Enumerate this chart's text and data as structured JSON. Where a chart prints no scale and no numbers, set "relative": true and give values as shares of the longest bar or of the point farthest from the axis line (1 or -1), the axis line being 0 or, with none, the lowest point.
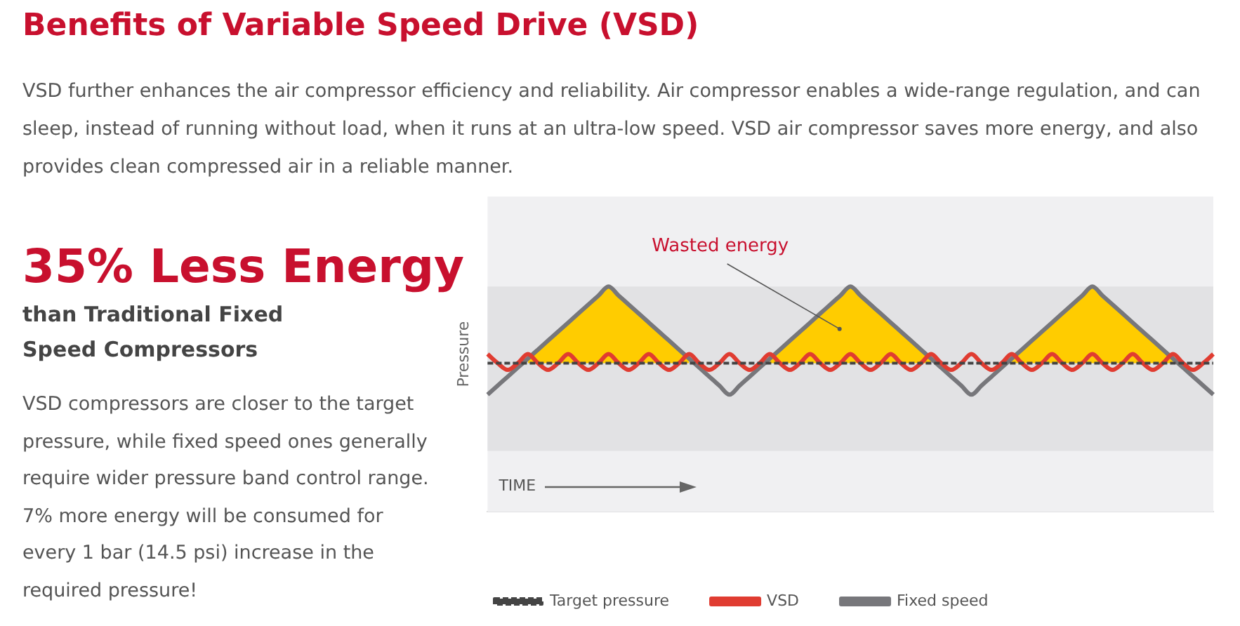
{
  "chart_data": [
    {
      "type": "other",
      "title": "Benefits of Variable Speed Drive (VSD)",
      "subtitle": "VSD further enhances the air compressor efficiency and reliability. Air compressor enables a wide-range regulation, and can sleep, instead of running without load, when it runs at an ultra-low speed. VSD air compressor saves more energy, and also provides clean compressed air in a reliable manner.",
      "annotations": [
        "35% Less Energy",
        "than Traditional Fixed Speed Compressors",
        "VSD compressors are closer to the target pressure, while fixed speed ones generally require wider pressure band control range. 7% more energy will be consumed for every 1 bar (14.5 psi) increase in the required pressure!"
      ]
    },
    {
      "type": "line",
      "relative": true,
      "xlabel": "TIME",
      "ylabel": "Pressure",
      "legend": "bottom",
      "categories": [
        null,
        null,
        null,
        null,
        null,
        null,
        null,
        null,
        null,
        null,
        null,
        null,
        null,
        null,
        null,
        null,
        null,
        null,
        null,
        null,
        null,
        null,
        null,
        null,
        null,
        null,
        null,
        null,
        null,
        null,
        null,
        null,
        null,
        null,
        null,
        null,
        null,
        null,
        null,
        null,
        null,
        null,
        null,
        null,
        null,
        null,
        null,
        null,
        null,
        null,
        null,
        null,
        null,
        null,
        null,
        null,
        null,
        null,
        null,
        null,
        null,
        null,
        null,
        null,
        null,
        null,
        null,
        null,
        null,
        null,
        null,
        null,
        null
      ],
      "bands": [
        {
          "axis": "y",
          "from": 0.27,
          "to": 1.0,
          "color": "#e2e2e4"
        }
      ],
      "annotations": [
        "Wasted energy"
      ],
      "series": [
        {
          "name": "Target pressure",
          "color": "#444444",
          "line_style": "dashed",
          "values": [
            0.66,
            0.66,
            0.66,
            0.66,
            0.66,
            0.66,
            0.66,
            0.66,
            0.66,
            0.66,
            0.66,
            0.66,
            0.66,
            0.66,
            0.66,
            0.66,
            0.66,
            0.66,
            0.66,
            0.66,
            0.66,
            0.66,
            0.66,
            0.66,
            0.66,
            0.66,
            0.66,
            0.66,
            0.66,
            0.66,
            0.66,
            0.66,
            0.66,
            0.66,
            0.66,
            0.66,
            0.66,
            0.66,
            0.66,
            0.66,
            0.66,
            0.66,
            0.66,
            0.66,
            0.66,
            0.66,
            0.66,
            0.66,
            0.66,
            0.66,
            0.66,
            0.66,
            0.66,
            0.66,
            0.66,
            0.66,
            0.66,
            0.66,
            0.66,
            0.66,
            0.66,
            0.66,
            0.66,
            0.66,
            0.66,
            0.66,
            0.66,
            0.66,
            0.66,
            0.66,
            0.66,
            0.66,
            0.66
          ]
        },
        {
          "type": "area",
          "color": "#ffcc00",
          "values": [
            null,
            null,
            null,
            null,
            0.68,
            0.72,
            0.76,
            0.8,
            0.84,
            0.88,
            0.92,
            0.96,
            1.0,
            0.96,
            0.92,
            0.88,
            0.84,
            0.8,
            0.76,
            0.72,
            0.68,
            null,
            null,
            null,
            null,
            null,
            null,
            null,
            0.68,
            0.72,
            0.76,
            0.8,
            0.84,
            0.88,
            0.92,
            0.96,
            1.0,
            0.96,
            0.92,
            0.88,
            0.84,
            0.8,
            0.76,
            0.72,
            0.68,
            null,
            null,
            null,
            null,
            null,
            null,
            null,
            0.68,
            0.72,
            0.76,
            0.8,
            0.84,
            0.88,
            0.92,
            0.96,
            1.0,
            0.96,
            0.92,
            0.88,
            0.84,
            0.8,
            0.76,
            0.72,
            0.68,
            null,
            null,
            null,
            null
          ]
        },
        {
          "name": "VSD",
          "color": "#e03c31",
          "values": [
            0.7,
            0.66,
            0.63,
            0.66,
            0.7,
            0.66,
            0.63,
            0.66,
            0.7,
            0.66,
            0.63,
            0.66,
            0.7,
            0.66,
            0.63,
            0.66,
            0.7,
            0.66,
            0.63,
            0.66,
            0.7,
            0.66,
            0.63,
            0.66,
            0.7,
            0.66,
            0.63,
            0.66,
            0.7,
            0.66,
            0.63,
            0.66,
            0.7,
            0.66,
            0.63,
            0.66,
            0.7,
            0.66,
            0.63,
            0.66,
            0.7,
            0.66,
            0.63,
            0.66,
            0.7,
            0.66,
            0.63,
            0.66,
            0.7,
            0.66,
            0.63,
            0.66,
            0.7,
            0.66,
            0.63,
            0.66,
            0.7,
            0.66,
            0.63,
            0.66,
            0.7,
            0.66,
            0.63,
            0.66,
            0.7,
            0.66,
            0.63,
            0.66,
            0.7,
            0.66,
            0.63,
            0.66,
            0.7
          ]
        },
        {
          "name": "Fixed speed",
          "color": "#77777b",
          "values": [
            0.52,
            0.56,
            0.6,
            0.64,
            0.68,
            0.72,
            0.76,
            0.8,
            0.84,
            0.88,
            0.92,
            0.96,
            1.0,
            0.96,
            0.92,
            0.88,
            0.84,
            0.8,
            0.76,
            0.72,
            0.68,
            0.64,
            0.6,
            0.56,
            0.52,
            0.56,
            0.6,
            0.64,
            0.68,
            0.72,
            0.76,
            0.8,
            0.84,
            0.88,
            0.92,
            0.96,
            1.0,
            0.96,
            0.92,
            0.88,
            0.84,
            0.8,
            0.76,
            0.72,
            0.68,
            0.64,
            0.6,
            0.56,
            0.52,
            0.56,
            0.6,
            0.64,
            0.68,
            0.72,
            0.76,
            0.8,
            0.84,
            0.88,
            0.92,
            0.96,
            1.0,
            0.96,
            0.92,
            0.88,
            0.84,
            0.8,
            0.76,
            0.72,
            0.68,
            0.64,
            0.6,
            0.56,
            0.52
          ]
        }
      ],
      "marker": "none"
    }
  ]
}
